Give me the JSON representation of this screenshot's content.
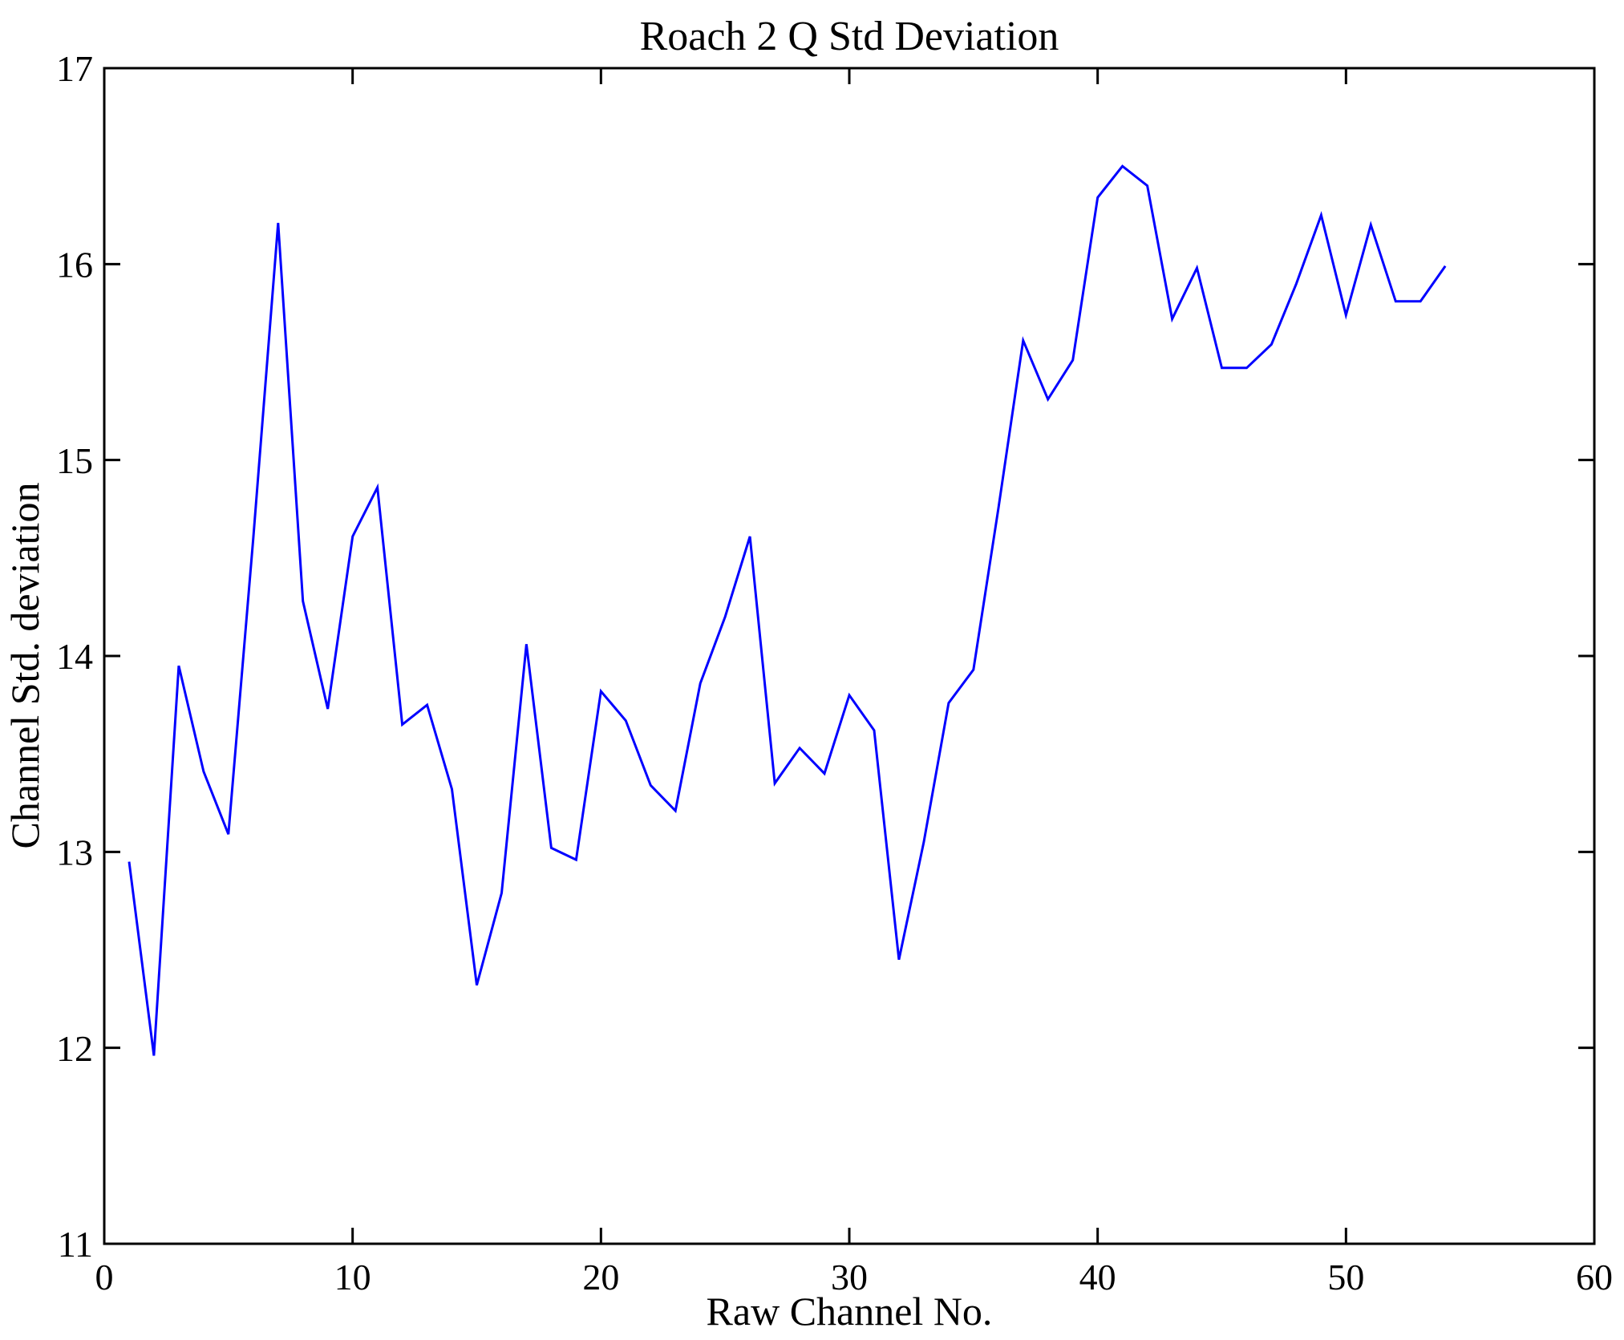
{
  "chart_data": {
    "type": "line",
    "title": "Roach 2 Q Std Deviation",
    "xlabel": "Raw Channel No.",
    "ylabel": "Channel Std. deviation",
    "xlim": [
      0,
      60
    ],
    "ylim": [
      11,
      17
    ],
    "xticks": [
      0,
      10,
      20,
      30,
      40,
      50,
      60
    ],
    "yticks": [
      11,
      12,
      13,
      14,
      15,
      16,
      17
    ],
    "grid": false,
    "legend": null,
    "line_color": "#0000FF",
    "axis_color": "#000000",
    "background": "#FFFFFF",
    "x": [
      1,
      2,
      3,
      4,
      5,
      6,
      7,
      8,
      9,
      10,
      11,
      12,
      13,
      14,
      15,
      16,
      17,
      18,
      19,
      20,
      21,
      22,
      23,
      24,
      25,
      26,
      27,
      28,
      29,
      30,
      31,
      32,
      33,
      34,
      35,
      36,
      37,
      38,
      39,
      40,
      41,
      42,
      43,
      44,
      45,
      46,
      47,
      48,
      49,
      50,
      51,
      52,
      53,
      54
    ],
    "values": [
      12.95,
      11.96,
      13.95,
      13.41,
      13.09,
      14.6,
      16.21,
      14.28,
      13.73,
      14.61,
      14.86,
      13.65,
      13.75,
      13.32,
      12.32,
      12.79,
      14.06,
      13.02,
      12.96,
      13.82,
      13.67,
      13.34,
      13.21,
      13.86,
      14.2,
      14.61,
      13.35,
      13.53,
      13.4,
      13.8,
      13.62,
      12.45,
      13.05,
      13.76,
      13.93,
      14.75,
      15.61,
      15.31,
      15.51,
      16.34,
      16.5,
      16.4,
      15.72,
      15.98,
      15.47,
      15.47,
      15.59,
      15.9,
      16.25,
      15.74,
      16.2,
      15.81,
      15.81,
      15.99
    ]
  }
}
